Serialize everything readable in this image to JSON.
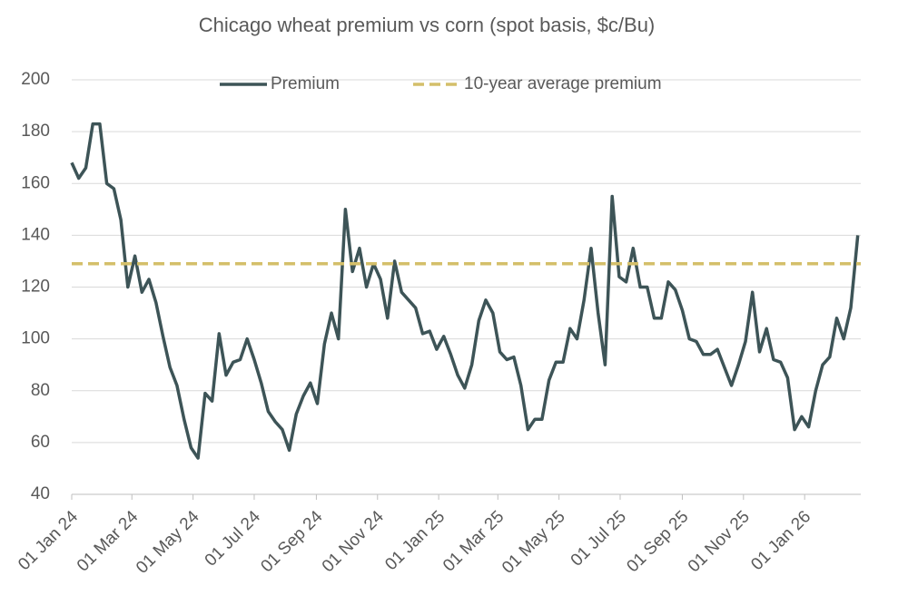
{
  "chart_data": {
    "type": "line",
    "title": "Chicago wheat premium vs corn (spot basis, $c/Bu)",
    "x": [
      "2024-01-01",
      "2024-01-08",
      "2024-01-15",
      "2024-01-22",
      "2024-01-29",
      "2024-02-05",
      "2024-02-12",
      "2024-02-19",
      "2024-02-26",
      "2024-03-04",
      "2024-03-11",
      "2024-03-18",
      "2024-03-25",
      "2024-04-01",
      "2024-04-08",
      "2024-04-15",
      "2024-04-22",
      "2024-04-29",
      "2024-05-06",
      "2024-05-13",
      "2024-05-20",
      "2024-05-27",
      "2024-06-03",
      "2024-06-10",
      "2024-06-17",
      "2024-06-24",
      "2024-07-01",
      "2024-07-08",
      "2024-07-15",
      "2024-07-22",
      "2024-07-29",
      "2024-08-05",
      "2024-08-12",
      "2024-08-19",
      "2024-08-26",
      "2024-09-02",
      "2024-09-09",
      "2024-09-16",
      "2024-09-23",
      "2024-09-30",
      "2024-10-07",
      "2024-10-14",
      "2024-10-21",
      "2024-10-28",
      "2024-11-04",
      "2024-11-11",
      "2024-11-18",
      "2024-11-25",
      "2024-12-02",
      "2024-12-09",
      "2024-12-16",
      "2024-12-23",
      "2024-12-30",
      "2025-01-06",
      "2025-01-13",
      "2025-01-20",
      "2025-01-27",
      "2025-02-03",
      "2025-02-10",
      "2025-02-17",
      "2025-02-24",
      "2025-03-03",
      "2025-03-10",
      "2025-03-17",
      "2025-03-24",
      "2025-03-31",
      "2025-04-07",
      "2025-04-14",
      "2025-04-21",
      "2025-04-28",
      "2025-05-05",
      "2025-05-12",
      "2025-05-19",
      "2025-05-26",
      "2025-06-02",
      "2025-06-09",
      "2025-06-16",
      "2025-06-23",
      "2025-06-30",
      "2025-07-07",
      "2025-07-14",
      "2025-07-21",
      "2025-07-28",
      "2025-08-04",
      "2025-08-11",
      "2025-08-18",
      "2025-08-25",
      "2025-09-01",
      "2025-09-08",
      "2025-09-15",
      "2025-09-22",
      "2025-09-29",
      "2025-10-06",
      "2025-10-13",
      "2025-10-20",
      "2025-10-27",
      "2025-11-03",
      "2025-11-10",
      "2025-11-17",
      "2025-11-24",
      "2025-12-01",
      "2025-12-08",
      "2025-12-15",
      "2025-12-22",
      "2025-12-29",
      "2026-01-05",
      "2026-01-12",
      "2026-01-19",
      "2026-01-26",
      "2026-02-02",
      "2026-02-09",
      "2026-02-16",
      "2026-02-23"
    ],
    "series": [
      {
        "name": "Premium",
        "color": "#3d5457",
        "dash": false,
        "values": [
          168,
          162,
          166,
          183,
          183,
          160,
          158,
          146,
          120,
          132,
          118,
          123,
          114,
          101,
          89,
          82,
          69,
          58,
          54,
          79,
          76,
          102,
          86,
          91,
          92,
          100,
          92,
          83,
          72,
          68,
          65,
          57,
          71,
          78,
          83,
          75,
          98,
          110,
          100,
          150,
          126,
          135,
          120,
          129,
          123,
          108,
          130,
          118,
          115,
          112,
          102,
          103,
          96,
          101,
          94,
          86,
          81,
          90,
          107,
          115,
          110,
          95,
          92,
          93,
          82,
          65,
          69,
          69,
          84,
          91,
          91,
          104,
          100,
          115,
          135,
          110,
          90,
          155,
          124,
          122,
          135,
          120,
          120,
          108,
          108,
          122,
          119,
          111,
          100,
          99,
          94,
          94,
          96,
          89,
          82,
          90,
          99,
          118,
          95,
          104,
          92,
          91,
          85,
          65,
          70,
          66,
          80,
          90,
          93,
          108,
          100,
          112,
          140
        ]
      },
      {
        "name": "10-year average premium",
        "color": "#d4bf6a",
        "dash": true,
        "x": [
          "2024-01-01",
          "2026-02-26"
        ],
        "values": [
          129,
          129
        ]
      }
    ],
    "xlim": [
      "2024-01-01",
      "2026-02-26"
    ],
    "xticks": [
      {
        "value": "2024-01-01",
        "label": "01 Jan 24"
      },
      {
        "value": "2024-03-01",
        "label": "01 Mar 24"
      },
      {
        "value": "2024-05-01",
        "label": "01 May 24"
      },
      {
        "value": "2024-07-01",
        "label": "01 Jul 24"
      },
      {
        "value": "2024-09-01",
        "label": "01 Sep 24"
      },
      {
        "value": "2024-11-01",
        "label": "01 Nov 24"
      },
      {
        "value": "2025-01-01",
        "label": "01 Jan 25"
      },
      {
        "value": "2025-03-01",
        "label": "01 Mar 25"
      },
      {
        "value": "2025-05-01",
        "label": "01 May 25"
      },
      {
        "value": "2025-07-01",
        "label": "01 Jul 25"
      },
      {
        "value": "2025-09-01",
        "label": "01 Sep 25"
      },
      {
        "value": "2025-11-01",
        "label": "01 Nov 25"
      },
      {
        "value": "2026-01-01",
        "label": "01 Jan 26"
      }
    ],
    "ylim": [
      40,
      200
    ],
    "yticks": [
      40,
      60,
      80,
      100,
      120,
      140,
      160,
      180,
      200
    ],
    "grid": true,
    "legend": "top"
  }
}
